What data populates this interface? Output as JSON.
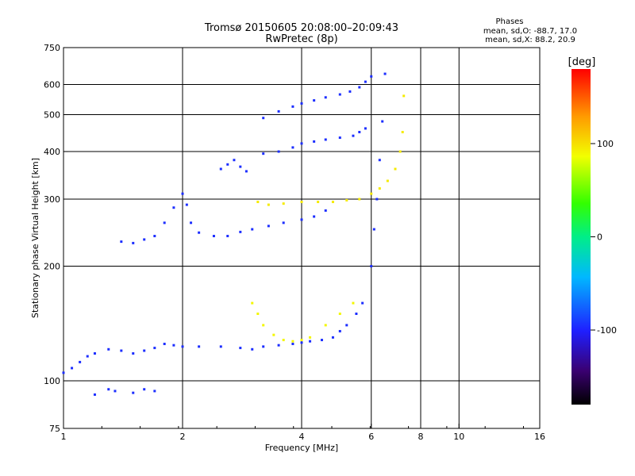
{
  "chart_data": {
    "type": "scatter",
    "title": "Tromsø 20150605 20:08:00–20:09:43",
    "subtitle": "RwPretec (8p)",
    "xlabel": "Frequency [MHz]",
    "ylabel": "Stationary phase Virtual Height [km]",
    "x_scale": "log2",
    "y_scale": "log",
    "xlim": [
      1,
      16
    ],
    "ylim": [
      75,
      750
    ],
    "x_ticks": [
      1,
      2,
      4,
      6,
      8,
      10,
      16
    ],
    "x_tick_labels": [
      "1",
      "2",
      "4",
      "6",
      "8",
      "10",
      "16"
    ],
    "x_grid": [
      2,
      4,
      6,
      8,
      10
    ],
    "y_ticks": [
      75,
      100,
      200,
      300,
      400,
      500,
      600,
      750
    ],
    "y_tick_labels": [
      "75",
      "100",
      "200",
      "300",
      "400",
      "500",
      "600",
      "750"
    ],
    "y_grid": [
      100,
      200,
      300,
      400,
      500,
      600
    ],
    "grid": true,
    "stats": {
      "heading": "Phases",
      "line1": "mean, sd,O: -88.7, 17.0",
      "line2": "mean, sd,X: 88.2, 20.9"
    },
    "colorbar": {
      "label": "[deg]",
      "range": [
        -180,
        180
      ],
      "ticks": [
        100,
        0,
        -100
      ],
      "tick_labels": [
        "100",
        "0",
        "-100"
      ],
      "colormap": "rainbow (black-purple-blue-cyan-green-yellow-red)"
    },
    "series": [
      {
        "name": "",
        "color_value_deg": -95,
        "x": [
          1.0,
          1.05,
          1.1,
          1.15,
          1.2,
          1.3,
          1.4,
          1.5,
          1.6,
          1.7,
          1.8,
          1.9,
          2.0,
          2.2,
          2.5,
          2.8,
          3.0,
          3.2,
          3.5,
          3.8,
          4.0,
          4.2,
          4.5,
          4.8,
          5.0,
          5.2,
          5.5,
          5.7,
          6.0,
          6.1,
          6.2,
          6.3,
          6.4,
          6.5
        ],
        "y": [
          105,
          108,
          112,
          116,
          118,
          121,
          120,
          118,
          120,
          122,
          125,
          124,
          123,
          123,
          123,
          122,
          121,
          123,
          124,
          125,
          126,
          127,
          128,
          130,
          135,
          140,
          150,
          160,
          200,
          250,
          300,
          380,
          480,
          640
        ]
      },
      {
        "name": "",
        "color_value_deg": -95,
        "x": [
          1.4,
          1.5,
          1.6,
          1.7,
          1.8,
          1.9,
          2.0,
          2.05,
          2.1,
          2.2,
          2.4,
          2.6,
          2.8,
          3.0,
          3.3,
          3.6,
          4.0,
          4.3,
          4.6
        ],
        "y": [
          232,
          230,
          235,
          240,
          260,
          285,
          310,
          290,
          260,
          245,
          240,
          240,
          246,
          250,
          255,
          260,
          265,
          270,
          280
        ]
      },
      {
        "name": "",
        "color_value_deg": 95,
        "x": [
          3.1,
          3.3,
          3.6,
          4.0,
          4.4,
          4.8,
          5.2,
          5.6,
          6.0,
          6.3,
          6.6,
          6.9,
          7.1,
          7.2,
          7.25
        ],
        "y": [
          295,
          290,
          292,
          295,
          295,
          295,
          298,
          300,
          310,
          320,
          335,
          360,
          400,
          450,
          560
        ]
      },
      {
        "name": "",
        "color_value_deg": 90,
        "x": [
          3.0,
          3.1,
          3.2,
          3.4,
          3.6,
          3.8,
          4.0,
          4.2,
          4.6,
          5.0,
          5.4
        ],
        "y": [
          160,
          150,
          140,
          132,
          128,
          127,
          128,
          130,
          140,
          150,
          160
        ]
      },
      {
        "name": "",
        "color_value_deg": -95,
        "x": [
          3.2,
          3.5,
          3.8,
          4.0,
          4.3,
          4.6,
          5.0,
          5.4,
          5.6,
          5.8
        ],
        "y": [
          395,
          400,
          410,
          420,
          425,
          430,
          435,
          440,
          450,
          460
        ]
      },
      {
        "name": "",
        "color_value_deg": -95,
        "x": [
          3.2,
          3.5,
          3.8,
          4.0,
          4.3,
          4.6,
          5.0,
          5.3,
          5.6,
          5.8,
          6.0
        ],
        "y": [
          490,
          510,
          525,
          535,
          545,
          555,
          565,
          575,
          590,
          610,
          630
        ]
      },
      {
        "name": "",
        "color_value_deg": -95,
        "x": [
          2.5,
          2.6,
          2.7,
          2.8,
          2.9
        ],
        "y": [
          360,
          370,
          380,
          365,
          355
        ]
      },
      {
        "name": "",
        "color_value_deg": -95,
        "x": [
          1.2,
          1.3,
          1.35,
          1.5,
          1.6,
          1.7
        ],
        "y": [
          92,
          95,
          94,
          93,
          95,
          94
        ]
      }
    ]
  }
}
